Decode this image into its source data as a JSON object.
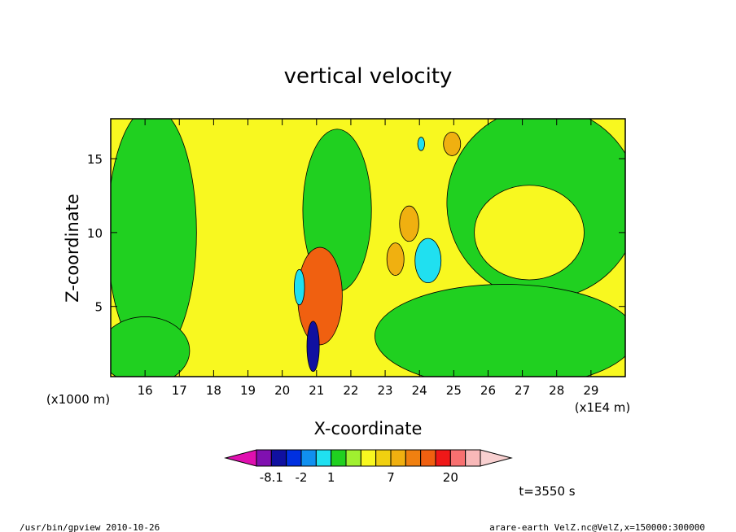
{
  "chart_data": {
    "type": "heatmap",
    "title": "vertical velocity",
    "xlabel": "X-coordinate",
    "ylabel": "Z-coordinate",
    "x_factor_label": "(x1E4 m)",
    "y_factor_label": "(x1000 m)",
    "xlim": [
      15.0,
      30.0
    ],
    "ylim": [
      0.25,
      17.7
    ],
    "x_ticks": [
      16,
      17,
      18,
      19,
      20,
      21,
      22,
      23,
      24,
      25,
      26,
      27,
      28,
      29
    ],
    "y_ticks": [
      5,
      10,
      15
    ],
    "colorbar": {
      "labels": [
        {
          "index": 1,
          "text": "-8.1"
        },
        {
          "index": 3,
          "text": "-2"
        },
        {
          "index": 5,
          "text": "1"
        },
        {
          "index": 9,
          "text": "7"
        },
        {
          "index": 13,
          "text": "20"
        }
      ],
      "colors": [
        "#e010b0",
        "#8010b0",
        "#1010a0",
        "#0030e0",
        "#1090f0",
        "#20e0f0",
        "#20d020",
        "#a0f030",
        "#f8f820",
        "#f0d010",
        "#f0b010",
        "#f08010",
        "#f06010",
        "#f01818",
        "#f87070",
        "#f8b8b8",
        "#f8d0d0"
      ]
    },
    "regions": [
      {
        "name": "green-left-column",
        "color": "#20d020",
        "x": 16.2,
        "y": 10.0,
        "rx": 1.3,
        "ry": 8.5
      },
      {
        "name": "green-lower-left",
        "color": "#20d020",
        "x": 16.0,
        "y": 2.0,
        "rx": 1.3,
        "ry": 2.3
      },
      {
        "name": "green-right-upper",
        "color": "#20d020",
        "x": 27.6,
        "y": 12.0,
        "rx": 2.8,
        "ry": 6.5
      },
      {
        "name": "green-right-lower",
        "color": "#20d020",
        "x": 26.5,
        "y": 3.0,
        "rx": 3.8,
        "ry": 3.5
      },
      {
        "name": "yellow-right-lobe",
        "color": "#f8f820",
        "x": 27.2,
        "y": 10.0,
        "rx": 1.6,
        "ry": 3.2
      },
      {
        "name": "green-center-plume",
        "color": "#20d020",
        "x": 21.6,
        "y": 11.5,
        "rx": 1.0,
        "ry": 5.5
      },
      {
        "name": "orange-core",
        "color": "#f06010",
        "x": 21.1,
        "y": 5.7,
        "rx": 0.65,
        "ry": 3.3
      },
      {
        "name": "cyan-right-cell",
        "color": "#20e0f0",
        "x": 24.25,
        "y": 8.1,
        "rx": 0.38,
        "ry": 1.5
      },
      {
        "name": "cyan-core-left",
        "color": "#20e0f0",
        "x": 20.5,
        "y": 6.3,
        "rx": 0.15,
        "ry": 1.2
      },
      {
        "name": "blue-core-lower",
        "color": "#1010a0",
        "x": 20.9,
        "y": 2.3,
        "rx": 0.18,
        "ry": 1.7
      },
      {
        "name": "light-orange-cell-1",
        "color": "#f0b010",
        "x": 23.7,
        "y": 10.6,
        "rx": 0.28,
        "ry": 1.2
      },
      {
        "name": "light-orange-cell-2",
        "color": "#f0b010",
        "x": 23.3,
        "y": 8.2,
        "rx": 0.25,
        "ry": 1.1
      },
      {
        "name": "light-orange-cell-3",
        "color": "#f0b010",
        "x": 24.95,
        "y": 16.0,
        "rx": 0.25,
        "ry": 0.8
      },
      {
        "name": "cyan-top-cell",
        "color": "#20e0f0",
        "x": 24.05,
        "y": 16.0,
        "rx": 0.1,
        "ry": 0.45
      }
    ]
  },
  "time_label": "t=3550 s",
  "footer_left": "/usr/bin/gpview   2010-10-26",
  "footer_right": "arare-earth_VelZ.nc@VelZ,x=150000:300000"
}
